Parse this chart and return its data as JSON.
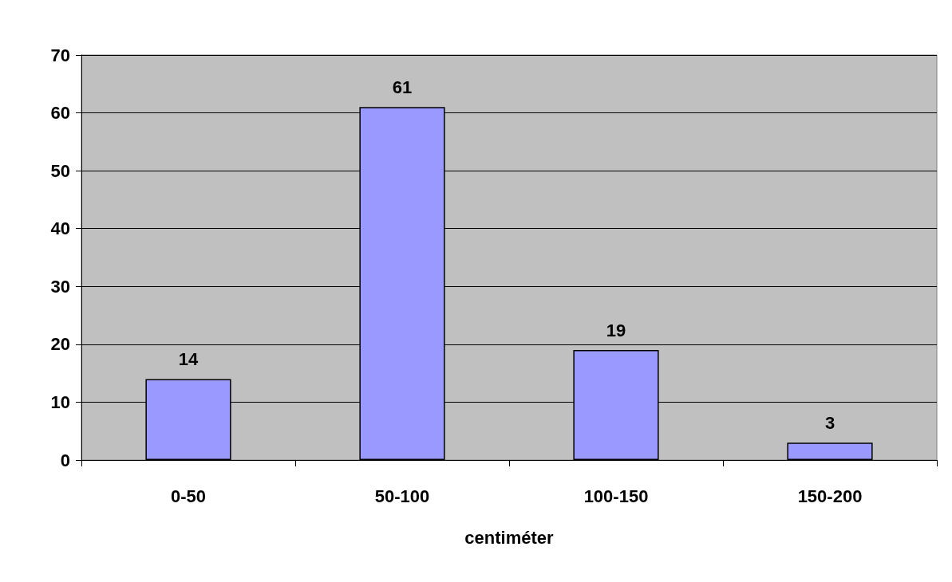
{
  "chart_data": {
    "type": "bar",
    "xlabel": "centiméter",
    "categories": [
      "0-50",
      "50-100",
      "100-150",
      "150-200"
    ],
    "values": [
      14,
      61,
      19,
      3
    ],
    "color": "#9999ff",
    "ylim": [
      0,
      70
    ],
    "yticks": [
      0,
      10,
      20,
      30,
      40,
      50,
      60,
      70
    ],
    "grid": "y",
    "data_labels": true
  }
}
